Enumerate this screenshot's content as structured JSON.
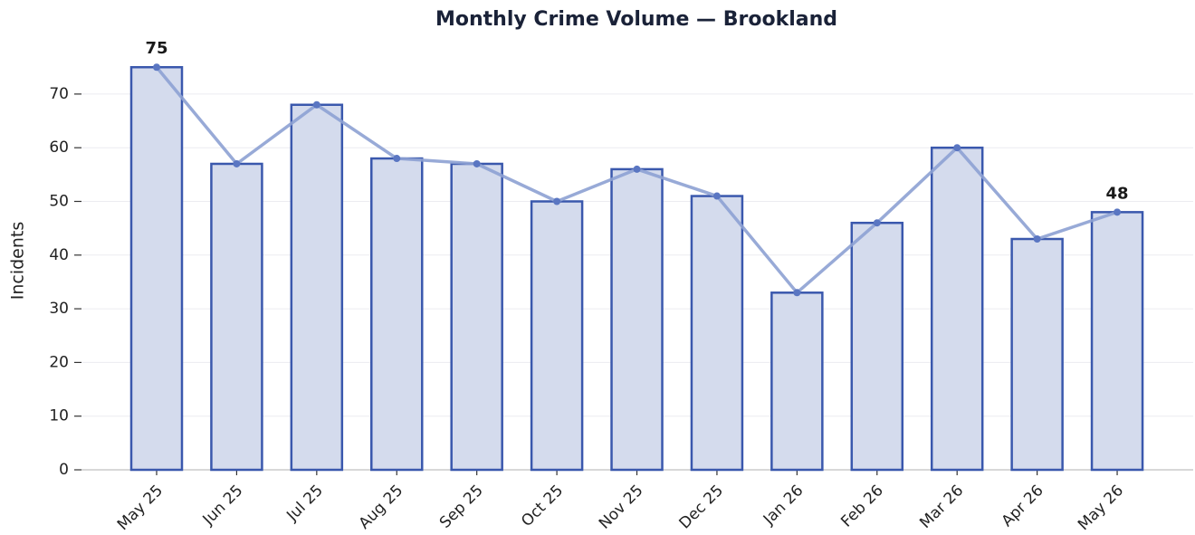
{
  "chart_data": {
    "type": "bar",
    "title": "Monthly Crime Volume — Brookland",
    "ylabel": "Incidents",
    "categories": [
      "May 25",
      "Jun 25",
      "Jul 25",
      "Aug 25",
      "Sep 25",
      "Oct 25",
      "Nov 25",
      "Dec 25",
      "Jan 26",
      "Feb 26",
      "Mar 26",
      "Apr 26",
      "May 26"
    ],
    "values": [
      75,
      57,
      68,
      58,
      57,
      50,
      56,
      51,
      33,
      46,
      60,
      43,
      48
    ],
    "value_labels": [
      "75",
      null,
      null,
      null,
      null,
      null,
      null,
      null,
      null,
      null,
      null,
      null,
      "48"
    ],
    "color": "#d4dbed",
    "edge_color": "#3a58ad",
    "overlay_line": true,
    "line_color": "#8da1d3",
    "ylim": [
      0,
      78.75
    ],
    "yticks": [
      0,
      10,
      20,
      30,
      40,
      50,
      60,
      70
    ],
    "grid": true
  }
}
